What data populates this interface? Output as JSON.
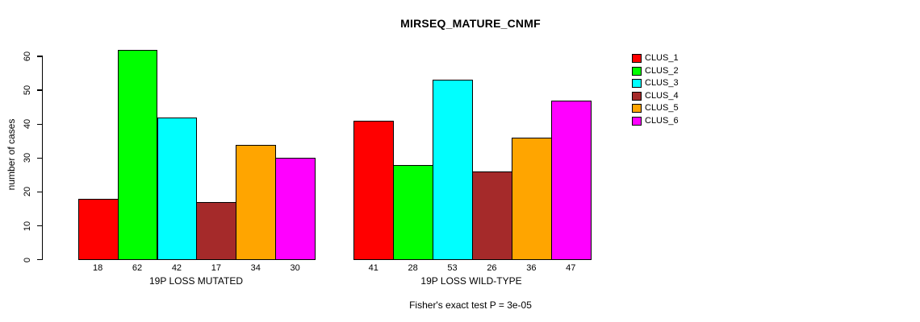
{
  "title": "MIRSEQ_MATURE_CNMF",
  "chart_data": {
    "type": "bar",
    "title": "MIRSEQ_MATURE_CNMF",
    "ylabel": "number of cases",
    "xlabel": "",
    "annotation": "Fisher's exact test P = 3e-05",
    "yticks": [
      0,
      10,
      20,
      30,
      40,
      50,
      60
    ],
    "ylim": [
      0,
      62
    ],
    "grid": false,
    "legend_position": "right",
    "legend": [
      "CLUS_1",
      "CLUS_2",
      "CLUS_3",
      "CLUS_4",
      "CLUS_5",
      "CLUS_6"
    ],
    "series_colors": [
      "#FF0000",
      "#00FF00",
      "#00FFFF",
      "#A52A2A",
      "#FFA500",
      "#FF00FF"
    ],
    "groups": [
      {
        "label": "19P LOSS MUTATED",
        "values": [
          18,
          62,
          42,
          17,
          34,
          30
        ]
      },
      {
        "label": "19P LOSS WILD-TYPE",
        "values": [
          41,
          28,
          53,
          26,
          36,
          47
        ]
      }
    ]
  }
}
